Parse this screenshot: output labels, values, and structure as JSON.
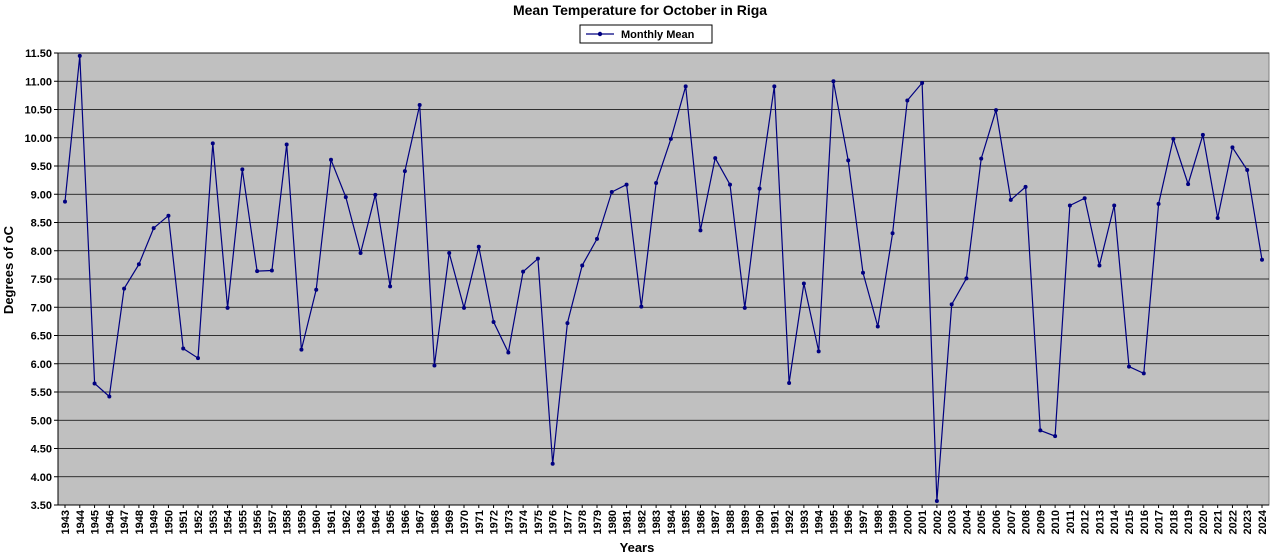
{
  "chart_data": {
    "type": "line",
    "title": "Mean Temperature for October in Riga",
    "xlabel": "Years",
    "ylabel": "Degrees of  oC",
    "ylim": [
      3.5,
      11.5
    ],
    "ytick_step": 0.5,
    "grid": true,
    "legend_position": "top-center",
    "colors": {
      "plot_bg": "#c0c0c0",
      "line": "#000080",
      "grid": "#000000"
    },
    "x": [
      1943,
      1944,
      1945,
      1946,
      1947,
      1948,
      1949,
      1950,
      1951,
      1952,
      1953,
      1954,
      1955,
      1956,
      1957,
      1958,
      1959,
      1960,
      1961,
      1962,
      1963,
      1964,
      1965,
      1966,
      1967,
      1968,
      1969,
      1970,
      1971,
      1972,
      1973,
      1974,
      1975,
      1976,
      1977,
      1978,
      1979,
      1980,
      1981,
      1982,
      1983,
      1984,
      1985,
      1986,
      1987,
      1988,
      1989,
      1990,
      1991,
      1992,
      1993,
      1994,
      1995,
      1996,
      1997,
      1998,
      1999,
      2000,
      2001,
      2002,
      2003,
      2004,
      2005,
      2006,
      2007,
      2008,
      2009,
      2010,
      2011,
      2012,
      2013,
      2014,
      2015,
      2016,
      2017,
      2018,
      2019,
      2020,
      2021,
      2022,
      2023,
      2024
    ],
    "series": [
      {
        "name": "Monthly Mean",
        "values": [
          8.87,
          11.45,
          5.65,
          5.42,
          7.33,
          7.76,
          8.4,
          8.62,
          6.27,
          6.1,
          9.9,
          6.99,
          9.44,
          7.64,
          7.65,
          9.88,
          6.25,
          7.31,
          9.61,
          8.95,
          7.96,
          8.99,
          7.37,
          9.41,
          10.58,
          5.97,
          7.96,
          6.99,
          8.07,
          6.74,
          6.2,
          7.63,
          7.86,
          4.23,
          6.72,
          7.74,
          8.21,
          9.04,
          9.17,
          7.01,
          9.2,
          9.98,
          10.91,
          8.36,
          9.64,
          9.17,
          6.99,
          9.1,
          10.91,
          5.66,
          7.42,
          6.22,
          11.0,
          9.6,
          7.61,
          6.66,
          8.31,
          10.66,
          10.97,
          3.57,
          7.05,
          7.51,
          9.63,
          10.49,
          8.9,
          9.13,
          4.82,
          4.72,
          8.8,
          8.93,
          7.74,
          8.8,
          5.95,
          5.83,
          8.83,
          9.98,
          9.18,
          10.05,
          8.58,
          9.83,
          9.43,
          7.84
        ]
      }
    ]
  }
}
